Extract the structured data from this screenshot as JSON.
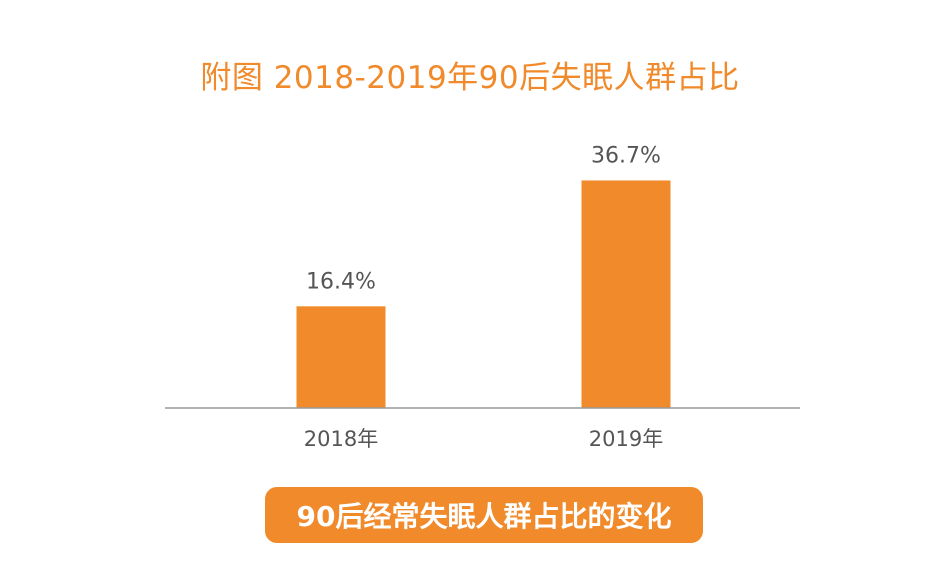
{
  "chart_data": {
    "type": "bar",
    "title": "附图  2018-2019年90后失眠人群占比",
    "categories": [
      "2018年",
      "2019年"
    ],
    "values": [
      16.4,
      36.7
    ],
    "value_labels": [
      "16.4%",
      "36.7%"
    ],
    "unit": "%",
    "xlabel": "",
    "ylabel": "",
    "ylim": [
      0,
      40
    ],
    "grid": false,
    "bar_color": "#f08a2a",
    "axis_color": "#999999",
    "caption": "90后经常失眠人群占比的变化"
  }
}
